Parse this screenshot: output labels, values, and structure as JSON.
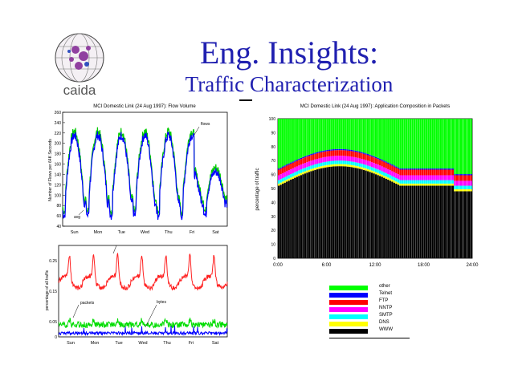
{
  "slide": {
    "title": "Eng. Insights:",
    "subtitle": "Traffic Characterization",
    "logo_text": "caida",
    "accent": "#2020b0"
  },
  "chart_data": [
    {
      "type": "line",
      "title": "MCI Domestic Link (24 Aug 1997): Flow Volume",
      "xlabel": "",
      "ylabel": "Number of Flows per 64K Seconds",
      "categories": [
        "Sun",
        "Mon",
        "Tue",
        "Wed",
        "Thu",
        "Fri",
        "Sat"
      ],
      "ylim": [
        40,
        260
      ],
      "yticks": [
        40,
        60,
        80,
        100,
        120,
        140,
        160,
        180,
        200,
        220,
        240,
        260
      ],
      "series": [
        {
          "name": "flows",
          "color": "#00cc00"
        },
        {
          "name": "avg",
          "color": "#0000ff"
        }
      ],
      "annotations": [
        "flows",
        "avg"
      ]
    },
    {
      "type": "line",
      "title": "",
      "ylabel": "percentage of all traffic",
      "categories": [
        "Sun",
        "Mon",
        "Tue",
        "Wed",
        "Thu",
        "Fri",
        "Sat"
      ],
      "ylim": [
        0,
        0.3
      ],
      "yticks": [
        0,
        0.05,
        0.15,
        0.25
      ],
      "series": [
        {
          "name": "",
          "color": "#ff2020"
        },
        {
          "name": "packets",
          "color": "#00dd00"
        },
        {
          "name": "bytes",
          "color": "#0000ff"
        }
      ],
      "annotations": [
        "packets",
        "bytes"
      ]
    },
    {
      "type": "bar",
      "title": "MCI Domestic Link (24 Aug 1997): Application Composition in Packets",
      "ylabel": "percentage of traffic",
      "xticks": [
        "0:00",
        "6:00",
        "12:00",
        "18:00",
        "24:00"
      ],
      "ylim": [
        0,
        100
      ],
      "yticks": [
        0,
        10,
        20,
        30,
        40,
        50,
        60,
        70,
        80,
        90,
        100
      ],
      "series": [
        {
          "name": "other",
          "color": "#00ff00"
        },
        {
          "name": "Telnet",
          "color": "#0000ff"
        },
        {
          "name": "FTP",
          "color": "#ff0000"
        },
        {
          "name": "NNTP",
          "color": "#ff00ff"
        },
        {
          "name": "SMTP",
          "color": "#00ffff"
        },
        {
          "name": "DNS",
          "color": "#ffff00"
        },
        {
          "name": "WWW",
          "color": "#000000"
        }
      ],
      "legend_position": "bottom"
    }
  ]
}
